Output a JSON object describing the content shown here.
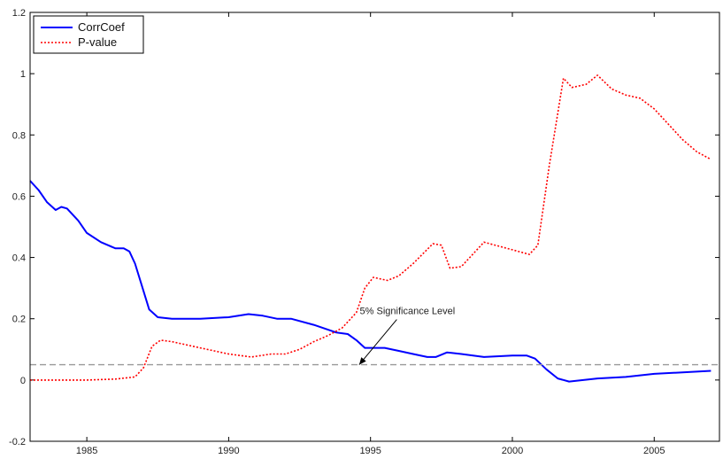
{
  "chart_data": {
    "type": "line",
    "title": "",
    "xlabel": "",
    "ylabel": "",
    "xlim": [
      1983,
      2007.3
    ],
    "ylim": [
      -0.2,
      1.2
    ],
    "x_ticks": [
      1985,
      1990,
      1995,
      2000,
      2005
    ],
    "y_ticks": [
      -0.2,
      0,
      0.2,
      0.4,
      0.6,
      0.8,
      1,
      1.2
    ],
    "y_tick_labels": [
      "-0.2",
      "0",
      "0.2",
      "0.4",
      "0.6",
      "0.8",
      "1",
      "1.2"
    ],
    "grid": false,
    "legend": {
      "position": "top-left"
    },
    "series": [
      {
        "name": "CorrCoef",
        "color": "#0000ff",
        "style": "solid",
        "points": [
          [
            1983.0,
            0.65
          ],
          [
            1983.3,
            0.62
          ],
          [
            1983.6,
            0.58
          ],
          [
            1983.9,
            0.555
          ],
          [
            1984.1,
            0.565
          ],
          [
            1984.3,
            0.56
          ],
          [
            1984.7,
            0.52
          ],
          [
            1985.0,
            0.48
          ],
          [
            1985.5,
            0.45
          ],
          [
            1986.0,
            0.43
          ],
          [
            1986.3,
            0.43
          ],
          [
            1986.5,
            0.42
          ],
          [
            1986.7,
            0.38
          ],
          [
            1986.9,
            0.32
          ],
          [
            1987.2,
            0.23
          ],
          [
            1987.5,
            0.205
          ],
          [
            1988.0,
            0.2
          ],
          [
            1989.0,
            0.2
          ],
          [
            1990.0,
            0.205
          ],
          [
            1990.7,
            0.215
          ],
          [
            1991.2,
            0.21
          ],
          [
            1991.7,
            0.2
          ],
          [
            1992.2,
            0.2
          ],
          [
            1993.0,
            0.18
          ],
          [
            1993.8,
            0.155
          ],
          [
            1994.2,
            0.15
          ],
          [
            1994.5,
            0.13
          ],
          [
            1994.8,
            0.105
          ],
          [
            1995.5,
            0.105
          ],
          [
            1996.0,
            0.095
          ],
          [
            1996.5,
            0.085
          ],
          [
            1997.0,
            0.075
          ],
          [
            1997.3,
            0.075
          ],
          [
            1997.7,
            0.09
          ],
          [
            1998.2,
            0.085
          ],
          [
            1999.0,
            0.075
          ],
          [
            2000.0,
            0.08
          ],
          [
            2000.5,
            0.08
          ],
          [
            2000.8,
            0.07
          ],
          [
            2001.2,
            0.035
          ],
          [
            2001.6,
            0.005
          ],
          [
            2002.0,
            -0.005
          ],
          [
            2002.5,
            0.0
          ],
          [
            2003.0,
            0.005
          ],
          [
            2004.0,
            0.01
          ],
          [
            2005.0,
            0.02
          ],
          [
            2006.0,
            0.025
          ],
          [
            2007.0,
            0.03
          ]
        ]
      },
      {
        "name": "P-value",
        "color": "#ff0000",
        "style": "dotted",
        "points": [
          [
            1983.0,
            0.0
          ],
          [
            1985.0,
            0.0
          ],
          [
            1986.0,
            0.003
          ],
          [
            1986.7,
            0.01
          ],
          [
            1987.0,
            0.04
          ],
          [
            1987.3,
            0.11
          ],
          [
            1987.6,
            0.13
          ],
          [
            1988.0,
            0.125
          ],
          [
            1989.0,
            0.105
          ],
          [
            1990.0,
            0.085
          ],
          [
            1990.8,
            0.075
          ],
          [
            1991.5,
            0.085
          ],
          [
            1992.0,
            0.085
          ],
          [
            1992.5,
            0.1
          ],
          [
            1993.0,
            0.125
          ],
          [
            1993.5,
            0.145
          ],
          [
            1994.0,
            0.17
          ],
          [
            1994.5,
            0.22
          ],
          [
            1994.8,
            0.3
          ],
          [
            1995.1,
            0.335
          ],
          [
            1995.6,
            0.325
          ],
          [
            1996.0,
            0.34
          ],
          [
            1996.5,
            0.38
          ],
          [
            1997.2,
            0.445
          ],
          [
            1997.5,
            0.44
          ],
          [
            1997.8,
            0.365
          ],
          [
            1998.2,
            0.37
          ],
          [
            1999.0,
            0.45
          ],
          [
            2000.0,
            0.425
          ],
          [
            2000.6,
            0.41
          ],
          [
            2000.9,
            0.44
          ],
          [
            2001.3,
            0.7
          ],
          [
            2001.8,
            0.985
          ],
          [
            2002.1,
            0.955
          ],
          [
            2002.6,
            0.965
          ],
          [
            2003.0,
            0.995
          ],
          [
            2003.5,
            0.95
          ],
          [
            2004.0,
            0.93
          ],
          [
            2004.5,
            0.92
          ],
          [
            2005.0,
            0.885
          ],
          [
            2005.5,
            0.835
          ],
          [
            2006.0,
            0.785
          ],
          [
            2006.5,
            0.745
          ],
          [
            2007.0,
            0.72
          ]
        ]
      }
    ],
    "reference_line": {
      "y": 0.05,
      "color": "#999999",
      "style": "dashed"
    },
    "annotation": {
      "text": "5% Significance Level",
      "text_x": 1996.3,
      "text_y": 0.215,
      "arrow_to": [
        1994.6,
        0.05
      ]
    }
  }
}
